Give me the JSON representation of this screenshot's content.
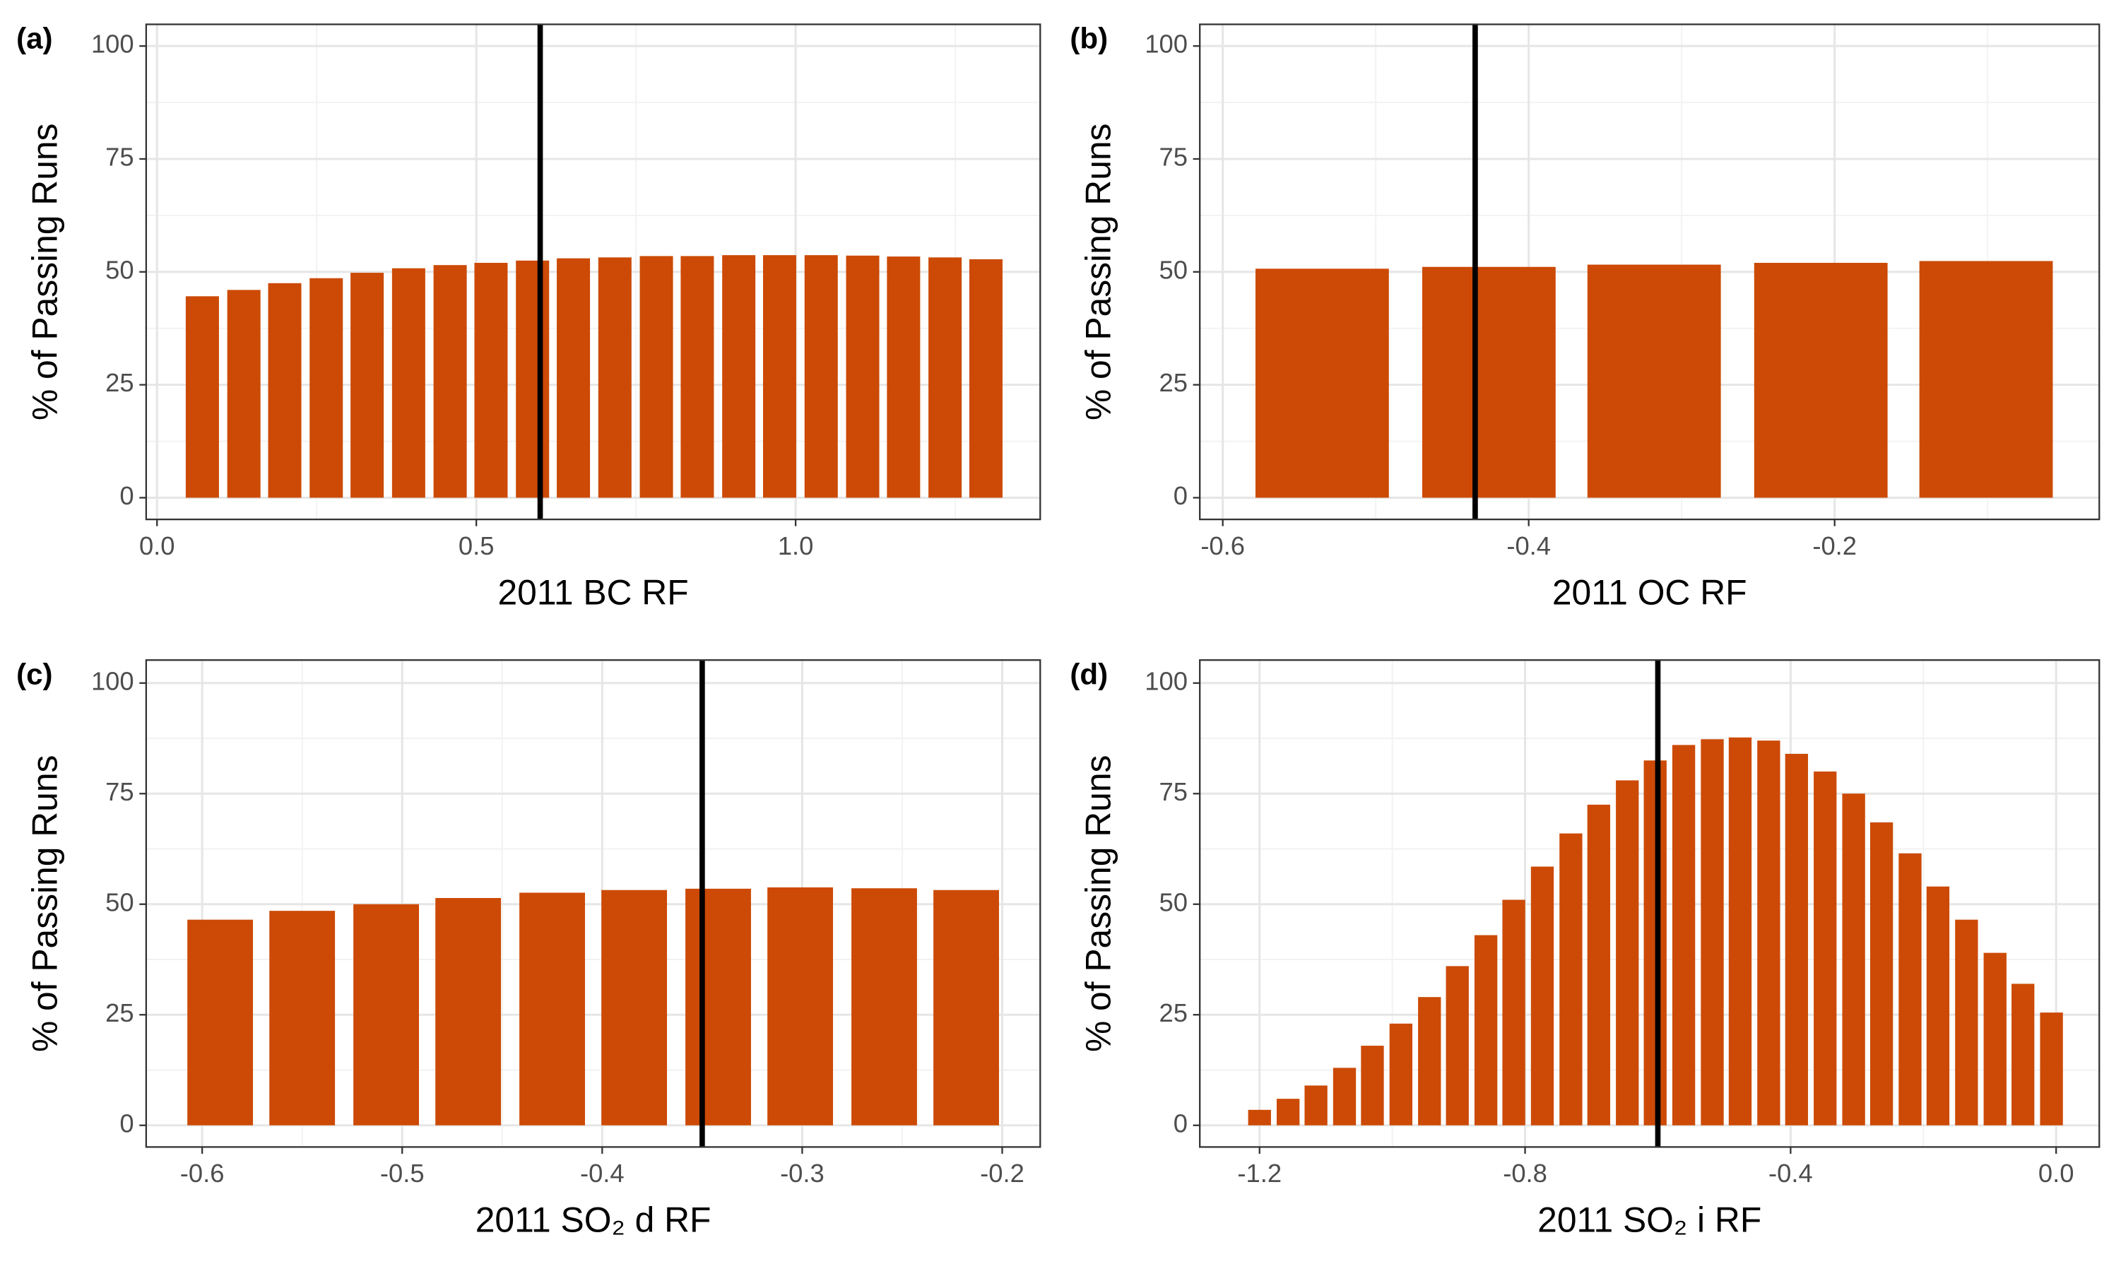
{
  "chart_data": [
    {
      "type": "bar",
      "label": "(a)",
      "x_label": "2011 BC RF",
      "y_label": "% of Passing Runs",
      "color": "#cc4a05",
      "x": [
        0.071,
        0.136,
        0.2,
        0.265,
        0.329,
        0.394,
        0.459,
        0.523,
        0.588,
        0.652,
        0.717,
        0.782,
        0.846,
        0.911,
        0.975,
        1.04,
        1.105,
        1.169,
        1.234,
        1.298
      ],
      "values": [
        44.6,
        46,
        47.5,
        48.6,
        49.8,
        50.8,
        51.5,
        52,
        52.5,
        53,
        53.2,
        53.5,
        53.5,
        53.7,
        53.7,
        53.7,
        53.6,
        53.4,
        53.2,
        52.8
      ],
      "vline": 0.6,
      "xlim": [
        -0.017,
        1.383
      ],
      "xticks": [
        {
          "value": 0,
          "label": "0.0"
        },
        0.5,
        {
          "value": 1,
          "label": "1.0"
        }
      ],
      "xminor": [
        0.25,
        0.75,
        1.25
      ],
      "ylim": [
        -4.8,
        104.8
      ],
      "yticks": [
        0,
        25,
        50,
        75,
        100
      ],
      "yminor": [
        12.5,
        37.5,
        62.5,
        87.5
      ],
      "grid": true
    },
    {
      "type": "bar",
      "label": "(b)",
      "x_label": "2011 OC RF",
      "y_label": "% of Passing Runs",
      "color": "#cc4a05",
      "x": [
        -0.535,
        -0.426,
        -0.318,
        -0.209,
        -0.101
      ],
      "values": [
        50.7,
        51.1,
        51.6,
        52,
        52.4
      ],
      "vline": -0.435,
      "xlim": [
        -0.615,
        -0.027
      ],
      "xticks": [
        -0.6,
        -0.4,
        -0.2
      ],
      "xminor": [
        -0.5,
        -0.3,
        -0.1
      ],
      "ylim": [
        -4.8,
        104.8
      ],
      "yticks": [
        0,
        25,
        50,
        75,
        100
      ],
      "yminor": [
        12.5,
        37.5,
        62.5,
        87.5
      ],
      "grid": true
    },
    {
      "type": "bar",
      "label": "(c)",
      "x_label": "2011 SO₂ d RF",
      "y_label": "% of Passing Runs",
      "color": "#cc4a05",
      "x": [
        -0.591,
        -0.55,
        -0.508,
        -0.467,
        -0.425,
        -0.384,
        -0.342,
        -0.301,
        -0.259,
        -0.218
      ],
      "values": [
        46.5,
        48.5,
        50,
        51.4,
        52.6,
        53.2,
        53.5,
        53.8,
        53.6,
        53.2
      ],
      "vline": -0.35,
      "xlim": [
        -0.628,
        -0.181
      ],
      "xticks": [
        -0.6,
        -0.5,
        -0.4,
        -0.3,
        -0.2
      ],
      "xminor": [
        -0.55,
        -0.45,
        -0.35,
        -0.25
      ],
      "ylim": [
        -4.9,
        105.2
      ],
      "yticks": [
        0,
        25,
        50,
        75,
        100
      ],
      "yminor": [
        12.5,
        37.5,
        62.5,
        87.5
      ],
      "grid": true
    },
    {
      "type": "bar",
      "label": "(d)",
      "x_label": "2011 SO₂ i RF",
      "y_label": "% of Passing Runs",
      "color": "#cc4a05",
      "x": [
        -1.2,
        -1.157,
        -1.115,
        -1.072,
        -1.03,
        -0.987,
        -0.944,
        -0.902,
        -0.859,
        -0.817,
        -0.774,
        -0.731,
        -0.689,
        -0.646,
        -0.604,
        -0.561,
        -0.518,
        -0.476,
        -0.433,
        -0.391,
        -0.348,
        -0.305,
        -0.263,
        -0.22,
        -0.178,
        -0.135,
        -0.092,
        -0.05,
        -0.007
      ],
      "values": [
        3.5,
        6,
        9,
        13,
        18,
        23,
        29,
        36,
        43,
        51,
        58.5,
        66,
        72.5,
        78,
        82.5,
        86,
        87.3,
        87.7,
        87,
        84,
        80,
        75,
        68.5,
        61.5,
        54,
        46.5,
        39,
        32,
        25.5
      ],
      "vline": -0.6,
      "xlim": [
        -1.29,
        0.065
      ],
      "xticks": [
        -1.2,
        -0.8,
        -0.4,
        {
          "value": 0,
          "label": "0.0"
        }
      ],
      "xminor": [
        -1.0,
        -0.6,
        -0.2
      ],
      "ylim": [
        -4.9,
        105.2
      ],
      "yticks": [
        0,
        25,
        50,
        75,
        100
      ],
      "yminor": [
        12.5,
        37.5,
        62.5,
        87.5
      ],
      "grid": true
    }
  ]
}
